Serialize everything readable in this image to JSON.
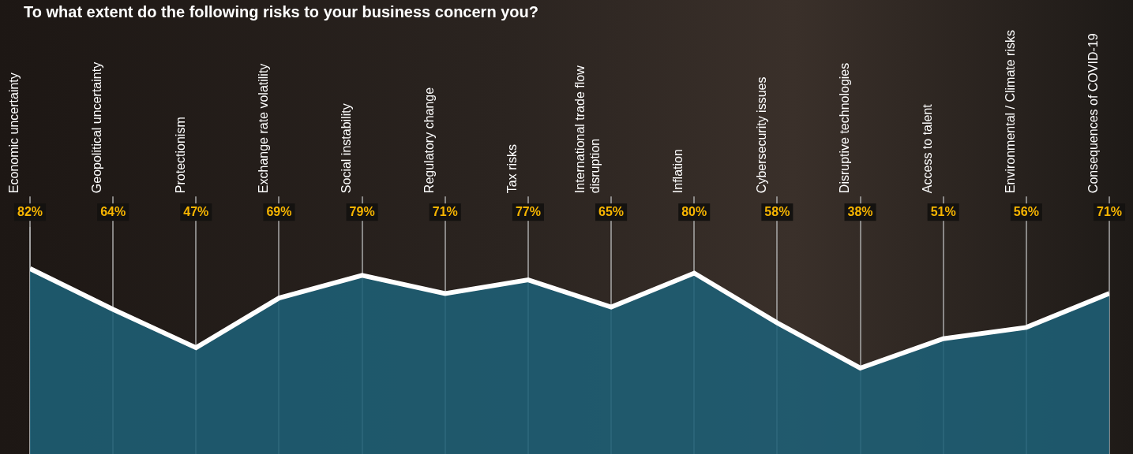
{
  "chart_data": {
    "type": "line",
    "title": "To what extent do the following risks to your business concern you?",
    "categories": [
      "Economic uncertainty",
      "Geopolitical uncertainty",
      "Protectionism",
      "Exchange rate volatility",
      "Social instability",
      "Regulatory change",
      "Tax risks",
      "International trade flow disruption",
      "Inflation",
      "Cybersecurity issues",
      "Disruptive technologies",
      "Access to talent",
      "Environmental / Climate risks",
      "Consequences of COVID-19"
    ],
    "values": [
      82,
      64,
      47,
      69,
      79,
      71,
      77,
      65,
      80,
      58,
      38,
      51,
      56,
      71
    ],
    "value_labels": [
      "82%",
      "64%",
      "47%",
      "69%",
      "79%",
      "71%",
      "77%",
      "65%",
      "80%",
      "58%",
      "38%",
      "51%",
      "56%",
      "71%"
    ],
    "color": "#ffffff",
    "ylim": [
      0,
      100
    ],
    "grid": true,
    "data_labels": true,
    "tick_labels": "x"
  }
}
